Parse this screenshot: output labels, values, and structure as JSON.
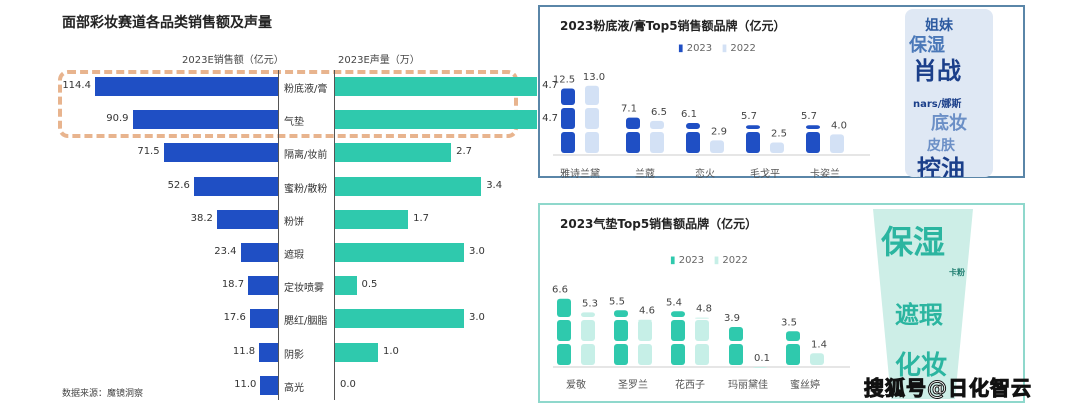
{
  "left_chart": {
    "title": "面部彩妆赛道各品类销售额及声量",
    "left_header": "2023E销售额（亿元）",
    "right_header": "2023E声量（万）",
    "source": "数据来源：魔镜洞察"
  },
  "top_panel": {
    "title": "2023粉底液/膏Top5销售额品牌（亿元）",
    "legend": [
      "2023",
      "2022"
    ],
    "cloud_words": [
      "姐妹",
      "保湿",
      "肖战",
      "nars/娜斯",
      "底妆",
      "皮肤",
      "控油"
    ]
  },
  "bottom_panel": {
    "title": "2023气垫Top5销售额品牌（亿元）",
    "legend": [
      "2023",
      "2022"
    ],
    "cloud_words": [
      "保湿",
      "卡粉",
      "遮瑕",
      "化妆"
    ]
  },
  "watermark": "搜狐号@日化智云",
  "colors": {
    "blue": "#1f4fc4",
    "teal": "#2fc9ad",
    "blue_light": "#d3e1f5",
    "teal_light": "#c6efe7",
    "top_border": "#5a86a8",
    "bottom_border": "#8fd8cc"
  },
  "chart_data": [
    {
      "type": "bar",
      "title": "面部彩妆赛道各品类销售额及声量",
      "categories": [
        "粉底液/膏",
        "气垫",
        "隔离/妆前",
        "蜜粉/散粉",
        "粉饼",
        "遮瑕",
        "定妆喷雾",
        "腮红/胭脂",
        "阴影",
        "高光"
      ],
      "series": [
        {
          "name": "2023E销售额（亿元）",
          "values": [
            114.4,
            90.9,
            71.5,
            52.6,
            38.2,
            23.4,
            18.7,
            17.6,
            11.8,
            11.0
          ]
        },
        {
          "name": "2023E声量（万）",
          "values": [
            4.7,
            4.7,
            2.7,
            3.4,
            1.7,
            3.0,
            0.5,
            3.0,
            1.0,
            0.0
          ]
        }
      ]
    },
    {
      "type": "bar",
      "title": "2023粉底液/膏Top5销售额品牌（亿元）",
      "categories": [
        "雅诗兰黛",
        "兰蔻",
        "恋火",
        "毛戈平",
        "卡姿兰"
      ],
      "series": [
        {
          "name": "2023",
          "values": [
            12.5,
            7.1,
            6.1,
            5.7,
            5.7
          ]
        },
        {
          "name": "2022",
          "values": [
            13.0,
            6.5,
            2.9,
            2.5,
            4.0
          ]
        }
      ]
    },
    {
      "type": "bar",
      "title": "2023气垫Top5销售额品牌（亿元）",
      "categories": [
        "爱敬",
        "圣罗兰",
        "花西子",
        "玛丽黛佳",
        "蜜丝婷"
      ],
      "series": [
        {
          "name": "2023",
          "values": [
            6.6,
            5.5,
            5.4,
            3.9,
            3.5
          ]
        },
        {
          "name": "2022",
          "values": [
            5.3,
            4.6,
            4.8,
            0.1,
            1.4
          ]
        }
      ]
    }
  ]
}
